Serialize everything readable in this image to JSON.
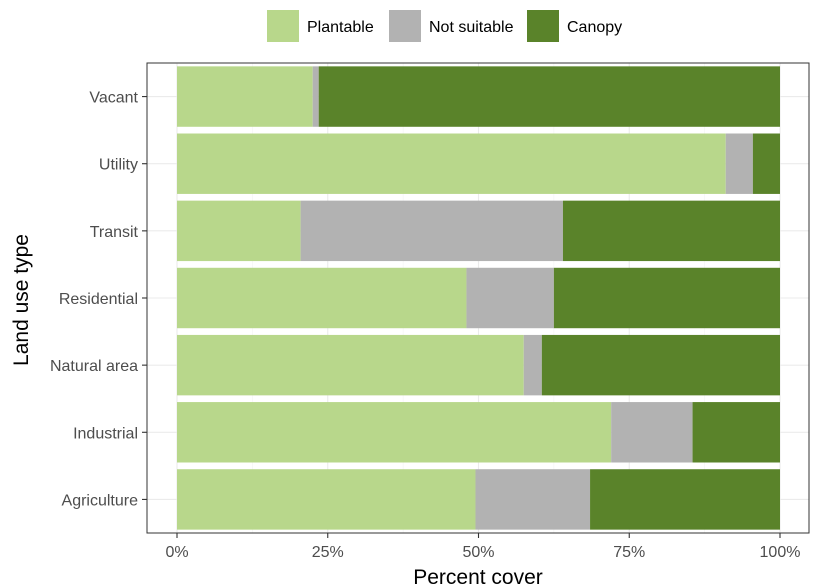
{
  "chart_data": {
    "type": "bar",
    "orientation": "horizontal",
    "stacked": true,
    "xlabel": "Percent cover",
    "ylabel": "Land use type",
    "xlim": [
      0,
      1
    ],
    "x_ticks": [
      0,
      0.25,
      0.5,
      0.75,
      1
    ],
    "x_tick_labels": [
      "0%",
      "25%",
      "50%",
      "75%",
      "100%"
    ],
    "categories": [
      "Agriculture",
      "Industrial",
      "Natural area",
      "Residential",
      "Transit",
      "Utility",
      "Vacant"
    ],
    "series": [
      {
        "name": "Plantable",
        "color": "#b8d78b",
        "values": [
          0.495,
          0.72,
          0.575,
          0.48,
          0.205,
          0.91,
          0.225
        ]
      },
      {
        "name": "Not suitable",
        "color": "#b2b2b2",
        "values": [
          0.19,
          0.135,
          0.03,
          0.145,
          0.435,
          0.045,
          0.01
        ]
      },
      {
        "name": "Canopy",
        "color": "#5a832a",
        "values": [
          0.315,
          0.145,
          0.395,
          0.375,
          0.36,
          0.045,
          0.765
        ]
      }
    ],
    "legend": {
      "position": "top",
      "items": [
        "Plantable",
        "Not suitable",
        "Canopy"
      ]
    },
    "grid": true
  }
}
